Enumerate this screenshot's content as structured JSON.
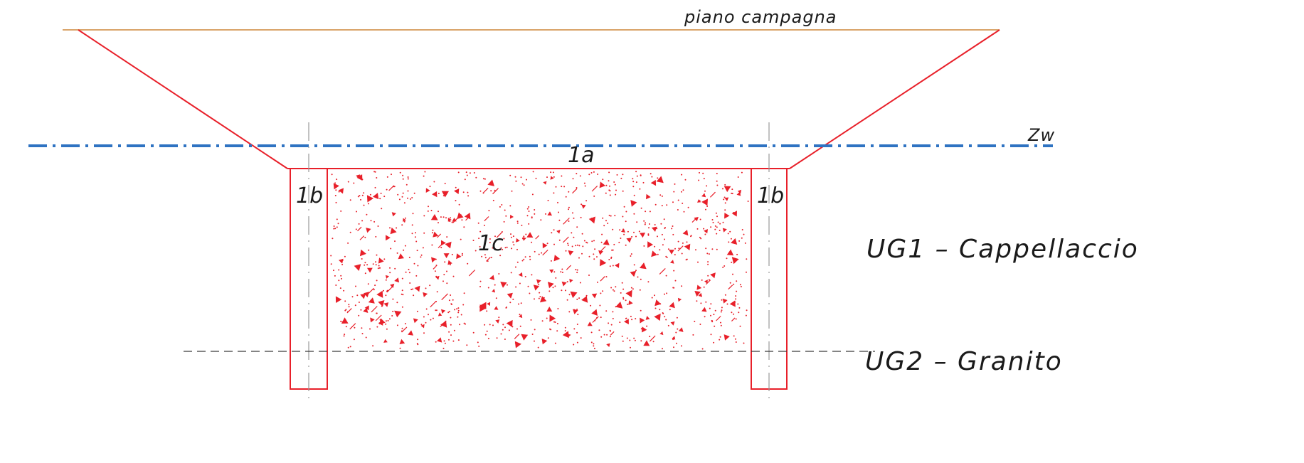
{
  "labels": {
    "ground_surface": "piano campagna",
    "water_table": "Zw",
    "zone_1a": "1a",
    "zone_1b_left": "1b",
    "zone_1b_right": "1b",
    "zone_1c": "1c",
    "unit_ug1": "UG1 – Cappellaccio",
    "unit_ug2": "UG2 – Granito"
  },
  "colors": {
    "ground_line": "#d9a46a",
    "excavation": "#e8202a",
    "water_table": "#2f73c2",
    "axis": "#9a9a9a",
    "boundary": "#3a3a3a",
    "text": "#1a1a1a"
  }
}
